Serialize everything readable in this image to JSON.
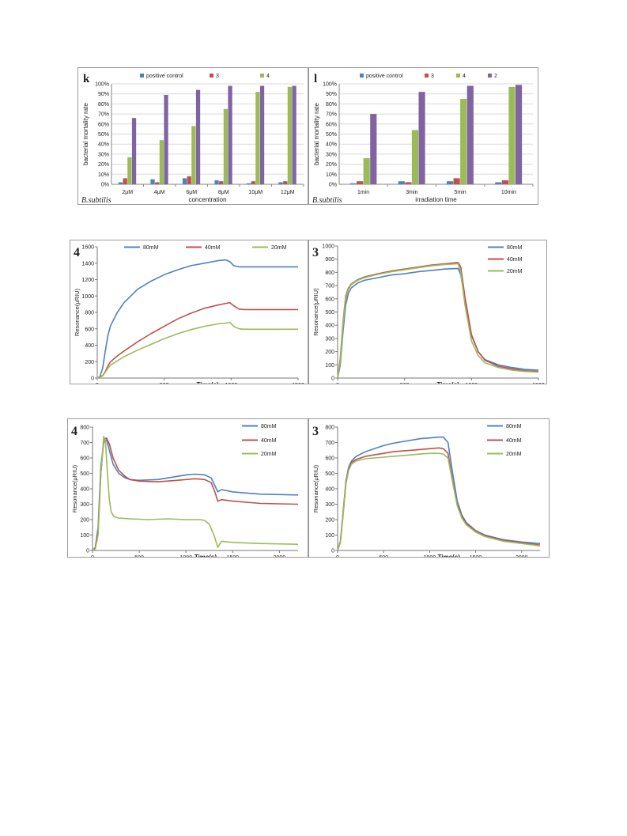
{
  "colors": {
    "blue": "#4f81bd",
    "red": "#c0504d",
    "green": "#9bbb59",
    "purple": "#8064a2",
    "grid": "#d9d9d9",
    "axis": "#868686"
  },
  "chart_data": [
    {
      "id": "k",
      "type": "bar",
      "panel_label": "k",
      "ylabel": "bacterial  mortality  rate",
      "xlabel": "concentration",
      "note": "B.subtilis",
      "yticks": [
        "0%",
        "10%",
        "20%",
        "30%",
        "40%",
        "50%",
        "60%",
        "70%",
        "80%",
        "90%",
        "100%"
      ],
      "ylim": [
        0,
        1
      ],
      "grid": true,
      "legend_position": "top",
      "categories": [
        "2μM",
        "4μM",
        "6μM",
        "8μM",
        "10μM",
        "12μM"
      ],
      "series": [
        {
          "name": "positive control",
          "color": "#4f81bd",
          "values": [
            0.02,
            0.05,
            0.06,
            0.04,
            0.01,
            0.02
          ]
        },
        {
          "name": "3",
          "color": "#c0504d",
          "values": [
            0.06,
            0.02,
            0.08,
            0.03,
            0.03,
            0.03
          ]
        },
        {
          "name": "4",
          "color": "#9bbb59",
          "values": [
            0.27,
            0.44,
            0.58,
            0.75,
            0.92,
            0.97
          ]
        },
        {
          "name": "2",
          "color": "#8064a2",
          "values": [
            0.66,
            0.89,
            0.94,
            0.98,
            0.98,
            0.98
          ]
        }
      ]
    },
    {
      "id": "l",
      "type": "bar",
      "panel_label": "l",
      "ylabel": "bacterial  mortality  rate",
      "xlabel": "irradiation time",
      "note": "B.subtilis",
      "yticks": [
        "0%",
        "10%",
        "20%",
        "30%",
        "40%",
        "50%",
        "60%",
        "70%",
        "80%",
        "90%",
        "100%"
      ],
      "ylim": [
        0,
        1
      ],
      "grid": true,
      "legend_position": "top",
      "categories": [
        "1min",
        "3min",
        "5min",
        "10min"
      ],
      "series": [
        {
          "name": "positive control",
          "color": "#4f81bd",
          "values": [
            0.01,
            0.03,
            0.03,
            0.02
          ]
        },
        {
          "name": "3",
          "color": "#c0504d",
          "values": [
            0.03,
            0.02,
            0.06,
            0.04
          ]
        },
        {
          "name": "4",
          "color": "#9bbb59",
          "values": [
            0.26,
            0.54,
            0.85,
            0.97
          ]
        },
        {
          "name": "2",
          "color": "#8064a2",
          "values": [
            0.7,
            0.92,
            0.98,
            0.99
          ]
        }
      ]
    },
    {
      "id": "s1",
      "type": "line",
      "panel_label": "4",
      "ylabel": "Resonance(μRIU)",
      "xlabel": "Time(s)",
      "xlim": [
        0,
        1500
      ],
      "ylim": [
        0,
        1600
      ],
      "xticks": [
        0,
        500,
        1000,
        1500
      ],
      "yticks": [
        0,
        200,
        400,
        600,
        800,
        1000,
        1200,
        1400,
        1600
      ],
      "legend_position": "top",
      "series": [
        {
          "name": "80mM",
          "color": "#4f81bd",
          "x": [
            0,
            20,
            40,
            60,
            80,
            100,
            150,
            200,
            300,
            400,
            500,
            600,
            700,
            800,
            900,
            960,
            990,
            1020,
            1060,
            1100,
            1500
          ],
          "y": [
            0,
            20,
            120,
            330,
            520,
            640,
            800,
            920,
            1080,
            1180,
            1260,
            1320,
            1370,
            1400,
            1430,
            1440,
            1420,
            1370,
            1355,
            1355,
            1355
          ]
        },
        {
          "name": "40mM",
          "color": "#c0504d",
          "x": [
            0,
            40,
            60,
            80,
            100,
            150,
            200,
            300,
            400,
            500,
            600,
            700,
            800,
            900,
            960,
            990,
            1020,
            1060,
            1100,
            1500
          ],
          "y": [
            0,
            30,
            80,
            150,
            200,
            270,
            330,
            440,
            540,
            630,
            720,
            790,
            850,
            890,
            910,
            920,
            880,
            840,
            835,
            835
          ]
        },
        {
          "name": "20mM",
          "color": "#9bbb59",
          "x": [
            0,
            40,
            60,
            80,
            100,
            150,
            200,
            300,
            400,
            500,
            600,
            700,
            800,
            900,
            960,
            990,
            1020,
            1060,
            1100,
            1500
          ],
          "y": [
            0,
            25,
            70,
            120,
            160,
            210,
            260,
            340,
            410,
            480,
            540,
            590,
            630,
            660,
            670,
            680,
            630,
            600,
            595,
            595
          ]
        }
      ]
    },
    {
      "id": "s2",
      "type": "line",
      "panel_label": "3",
      "ylabel": "Resonance(μRIU)",
      "xlabel": "Time(s)",
      "xlim": [
        0,
        1500
      ],
      "ylim": [
        0,
        1000
      ],
      "xticks": [
        0,
        500,
        1000,
        1500
      ],
      "yticks": [
        0,
        100,
        200,
        300,
        400,
        500,
        600,
        700,
        800,
        900,
        1000
      ],
      "legend_position": "top-right",
      "series": [
        {
          "name": "80mM",
          "color": "#4f81bd",
          "x": [
            0,
            20,
            40,
            60,
            80,
            100,
            150,
            200,
            300,
            400,
            500,
            600,
            700,
            800,
            900,
            920,
            950,
            1000,
            1050,
            1100,
            1200,
            1300,
            1400,
            1500
          ],
          "y": [
            0,
            100,
            350,
            550,
            640,
            680,
            720,
            740,
            760,
            780,
            790,
            805,
            815,
            825,
            830,
            780,
            600,
            320,
            200,
            140,
            100,
            80,
            65,
            60
          ]
        },
        {
          "name": "40mM",
          "color": "#c0504d",
          "x": [
            0,
            20,
            40,
            60,
            80,
            100,
            150,
            200,
            300,
            400,
            500,
            600,
            700,
            800,
            900,
            920,
            950,
            1000,
            1050,
            1100,
            1200,
            1300,
            1400,
            1500
          ],
          "y": [
            0,
            150,
            420,
            620,
            680,
            710,
            745,
            765,
            790,
            810,
            825,
            840,
            855,
            865,
            875,
            840,
            620,
            330,
            200,
            135,
            90,
            70,
            55,
            50
          ]
        },
        {
          "name": "20mM",
          "color": "#9bbb59",
          "x": [
            0,
            20,
            40,
            60,
            80,
            100,
            150,
            200,
            300,
            400,
            500,
            600,
            700,
            800,
            900,
            920,
            950,
            1000,
            1050,
            1100,
            1200,
            1300,
            1400,
            1500
          ],
          "y": [
            0,
            130,
            400,
            600,
            670,
            705,
            740,
            760,
            785,
            805,
            820,
            835,
            850,
            860,
            865,
            800,
            560,
            280,
            170,
            115,
            80,
            60,
            50,
            45
          ]
        }
      ]
    },
    {
      "id": "s3",
      "type": "line",
      "panel_label": "4",
      "ylabel": "Resonance(μRIU)",
      "xlabel": "Time(s)",
      "xlim": [
        0,
        2200
      ],
      "ylim": [
        0,
        800
      ],
      "xticks": [
        0,
        500,
        1000,
        1500,
        2000
      ],
      "yticks": [
        0,
        100,
        200,
        300,
        400,
        500,
        600,
        700,
        800
      ],
      "legend_position": "top-right",
      "series": [
        {
          "name": "80mM",
          "color": "#4f81bd",
          "x": [
            0,
            30,
            60,
            90,
            120,
            150,
            180,
            220,
            280,
            350,
            400,
            500,
            700,
            900,
            1000,
            1100,
            1200,
            1270,
            1310,
            1340,
            1380,
            1500,
            1800,
            2200
          ],
          "y": [
            0,
            20,
            150,
            550,
            700,
            720,
            650,
            560,
            500,
            470,
            460,
            455,
            460,
            480,
            490,
            495,
            490,
            470,
            420,
            380,
            395,
            380,
            365,
            360
          ]
        },
        {
          "name": "40mM",
          "color": "#c0504d",
          "x": [
            0,
            30,
            60,
            90,
            120,
            150,
            180,
            220,
            280,
            350,
            400,
            500,
            700,
            900,
            1000,
            1100,
            1200,
            1270,
            1310,
            1340,
            1380,
            1500,
            1800,
            2200
          ],
          "y": [
            0,
            15,
            120,
            500,
            720,
            730,
            690,
            600,
            520,
            480,
            460,
            450,
            445,
            455,
            460,
            465,
            460,
            440,
            380,
            320,
            330,
            320,
            305,
            300
          ]
        },
        {
          "name": "20mM",
          "color": "#9bbb59",
          "x": [
            0,
            30,
            60,
            90,
            120,
            140,
            160,
            180,
            200,
            230,
            280,
            400,
            600,
            800,
            1000,
            1150,
            1200,
            1250,
            1300,
            1340,
            1380,
            1450,
            1600,
            1800,
            2200
          ],
          "y": [
            0,
            10,
            100,
            500,
            740,
            700,
            500,
            330,
            250,
            220,
            210,
            205,
            200,
            205,
            200,
            200,
            195,
            170,
            100,
            20,
            60,
            55,
            50,
            45,
            40
          ]
        }
      ]
    },
    {
      "id": "s4",
      "type": "line",
      "panel_label": "3",
      "ylabel": "Resonance(μRIU)",
      "xlabel": "Time(s)",
      "xlim": [
        0,
        2200
      ],
      "ylim": [
        0,
        800
      ],
      "xticks": [
        0,
        500,
        1000,
        1500,
        2000
      ],
      "yticks": [
        0,
        100,
        200,
        300,
        400,
        500,
        600,
        700,
        800
      ],
      "legend_position": "top-right",
      "series": [
        {
          "name": "80mM",
          "color": "#4f81bd",
          "x": [
            0,
            30,
            60,
            90,
            120,
            150,
            200,
            300,
            400,
            500,
            600,
            700,
            800,
            900,
            1000,
            1100,
            1150,
            1200,
            1250,
            1300,
            1350,
            1400,
            1500,
            1600,
            1800,
            2000,
            2200
          ],
          "y": [
            0,
            60,
            250,
            450,
            540,
            580,
            610,
            640,
            660,
            680,
            695,
            705,
            715,
            725,
            730,
            735,
            735,
            700,
            500,
            320,
            230,
            180,
            130,
            100,
            70,
            55,
            45
          ]
        },
        {
          "name": "40mM",
          "color": "#c0504d",
          "x": [
            0,
            30,
            60,
            90,
            120,
            150,
            200,
            300,
            400,
            500,
            600,
            700,
            800,
            900,
            1000,
            1100,
            1150,
            1200,
            1250,
            1300,
            1350,
            1400,
            1500,
            1600,
            1800,
            2000,
            2200
          ],
          "y": [
            0,
            55,
            240,
            440,
            530,
            570,
            590,
            610,
            620,
            630,
            640,
            645,
            650,
            655,
            660,
            665,
            660,
            630,
            450,
            300,
            220,
            175,
            125,
            95,
            65,
            50,
            35
          ]
        },
        {
          "name": "20mM",
          "color": "#9bbb59",
          "x": [
            0,
            30,
            60,
            90,
            120,
            150,
            200,
            300,
            400,
            500,
            600,
            700,
            800,
            900,
            1000,
            1100,
            1150,
            1200,
            1250,
            1300,
            1350,
            1400,
            1500,
            1600,
            1800,
            2000,
            2200
          ],
          "y": [
            0,
            50,
            230,
            430,
            520,
            560,
            580,
            595,
            600,
            605,
            610,
            615,
            620,
            625,
            630,
            630,
            625,
            600,
            440,
            290,
            210,
            165,
            120,
            90,
            60,
            45,
            30
          ]
        }
      ]
    }
  ]
}
